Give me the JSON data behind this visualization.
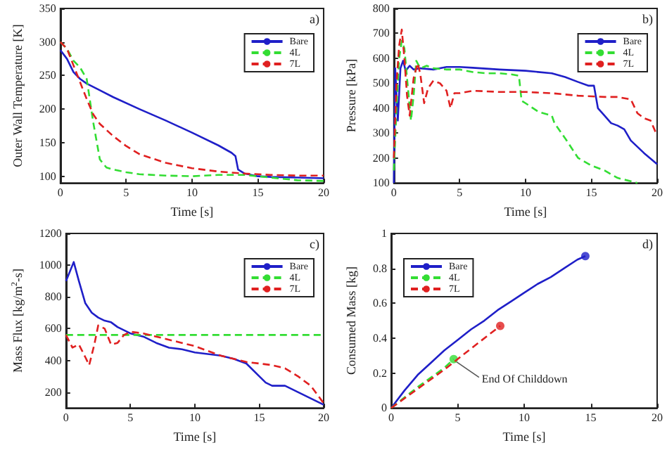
{
  "chart_data": [
    {
      "type": "line",
      "xlabel": "Time [s]",
      "ylabel": "Outer Wall Temperature [K]",
      "annotations": [
        "a)"
      ],
      "xlim": [
        0,
        20
      ],
      "xticks": [
        0,
        5,
        10,
        15,
        20
      ],
      "ylim": [
        90,
        350
      ],
      "yticks": [
        100,
        150,
        200,
        250,
        300,
        350
      ],
      "grid": false,
      "legend": "top right",
      "marker": "none",
      "series": [
        {
          "name": "Bare",
          "color": "#1f1fc8",
          "line_style": "solid",
          "x": [
            0,
            0.5,
            1,
            1.5,
            2,
            3,
            4,
            6,
            8,
            10,
            12,
            13,
            13.3,
            13.5,
            14,
            15,
            16,
            18,
            20
          ],
          "values": [
            288,
            275,
            255,
            245,
            238,
            228,
            218,
            200,
            183,
            165,
            146,
            135,
            130,
            110,
            104,
            100,
            99,
            98,
            97
          ]
        },
        {
          "name": "4L",
          "color": "#33dd33",
          "line_style": "dashed",
          "x": [
            0,
            0.5,
            1,
            1.5,
            2,
            2.5,
            3,
            3.5,
            4,
            5,
            6,
            8,
            10,
            12,
            14,
            16,
            18,
            20
          ],
          "values": [
            300,
            290,
            272,
            262,
            245,
            180,
            125,
            113,
            110,
            106,
            103,
            101,
            100,
            102,
            102,
            98,
            94,
            93
          ]
        },
        {
          "name": "7L",
          "color": "#e02020",
          "line_style": "dashed",
          "x": [
            0,
            0.5,
            1,
            1.5,
            2,
            2.5,
            3,
            4,
            5,
            6,
            8,
            10,
            12,
            14,
            16,
            18,
            20
          ],
          "values": [
            300,
            290,
            265,
            240,
            215,
            192,
            178,
            160,
            145,
            133,
            120,
            112,
            107,
            104,
            102,
            101,
            101
          ]
        }
      ]
    },
    {
      "type": "line",
      "xlabel": "Time [s]",
      "ylabel": "Pressure [kPa]",
      "annotations": [
        "b)"
      ],
      "xlim": [
        0,
        20
      ],
      "xticks": [
        0,
        5,
        10,
        15,
        20
      ],
      "ylim": [
        100,
        800
      ],
      "yticks": [
        100,
        200,
        300,
        400,
        500,
        600,
        700,
        800
      ],
      "grid": false,
      "legend": "top right",
      "marker": "none",
      "series": [
        {
          "name": "Bare",
          "color": "#1f1fc8",
          "line_style": "solid",
          "x": [
            0,
            0.1,
            0.3,
            0.5,
            0.7,
            0.9,
            1.2,
            1.5,
            2,
            3,
            4,
            5,
            6,
            8,
            10,
            12,
            13,
            14,
            14.8,
            15.2,
            15.5,
            16,
            16.5,
            17,
            17.5,
            18,
            19,
            20
          ],
          "values": [
            100,
            560,
            350,
            560,
            590,
            550,
            570,
            555,
            560,
            555,
            565,
            565,
            562,
            555,
            550,
            540,
            525,
            505,
            490,
            490,
            400,
            370,
            340,
            330,
            315,
            270,
            220,
            175
          ]
        },
        {
          "name": "4L",
          "color": "#33dd33",
          "line_style": "dashed",
          "x": [
            0,
            0.2,
            0.4,
            0.6,
            0.8,
            1,
            1.3,
            1.5,
            1.7,
            2,
            2.5,
            3,
            4,
            5,
            6,
            7,
            8,
            9,
            9.5,
            9.7,
            10,
            11,
            12,
            12.2,
            13,
            14,
            15,
            16,
            17,
            18.5
          ],
          "values": [
            150,
            400,
            600,
            670,
            640,
            520,
            350,
            450,
            590,
            560,
            570,
            560,
            555,
            555,
            545,
            540,
            540,
            535,
            530,
            430,
            420,
            385,
            370,
            340,
            280,
            200,
            170,
            150,
            120,
            100
          ]
        },
        {
          "name": "7L",
          "color": "#e02020",
          "line_style": "dashed",
          "x": [
            0,
            0.2,
            0.4,
            0.6,
            0.8,
            1,
            1.2,
            1.5,
            1.8,
            2,
            2.3,
            2.6,
            3,
            3.5,
            4,
            4.3,
            4.6,
            5,
            6,
            8,
            10,
            12,
            14,
            16,
            17,
            18,
            18.5,
            19,
            19.5,
            20
          ],
          "values": [
            200,
            500,
            650,
            715,
            600,
            450,
            370,
            520,
            580,
            540,
            420,
            480,
            510,
            500,
            470,
            400,
            460,
            460,
            470,
            465,
            465,
            460,
            450,
            445,
            445,
            435,
            380,
            360,
            350,
            290
          ]
        }
      ]
    },
    {
      "type": "line",
      "xlabel": "Time [s]",
      "ylabel": "Mass Flux [kg/m$^{2}$-s]",
      "annotations": [
        "c)"
      ],
      "xlim": [
        0,
        20
      ],
      "xticks": [
        0,
        5,
        10,
        15,
        20
      ],
      "ylim": [
        100,
        1200
      ],
      "yticks": [
        200,
        400,
        600,
        800,
        1000,
        1200
      ],
      "grid": false,
      "legend": "top right",
      "marker": "none",
      "series": [
        {
          "name": "Bare",
          "color": "#1f1fc8",
          "line_style": "solid",
          "x": [
            0,
            0.3,
            0.6,
            1,
            1.5,
            2,
            2.5,
            3,
            3.5,
            4,
            5,
            6,
            7,
            8,
            9,
            10,
            11,
            12,
            13,
            14,
            15,
            15.5,
            16,
            17,
            18,
            19,
            20
          ],
          "values": [
            900,
            960,
            1020,
            900,
            760,
            700,
            670,
            650,
            640,
            610,
            570,
            550,
            510,
            480,
            470,
            450,
            440,
            430,
            410,
            380,
            300,
            260,
            240,
            240,
            200,
            160,
            120
          ]
        },
        {
          "name": "4L",
          "color": "#33dd33",
          "line_style": "dashed",
          "x": [
            0,
            20
          ],
          "values": [
            560,
            560
          ]
        },
        {
          "name": "7L",
          "color": "#e02020",
          "line_style": "dashed",
          "x": [
            0,
            0.5,
            1,
            1.5,
            1.8,
            2.2,
            2.5,
            3,
            3.5,
            4,
            4.5,
            5,
            6,
            7,
            8,
            9,
            10,
            11,
            12,
            13,
            14,
            15,
            16,
            17,
            18,
            19,
            20
          ],
          "values": [
            560,
            480,
            500,
            420,
            370,
            500,
            620,
            600,
            500,
            510,
            560,
            580,
            570,
            550,
            530,
            510,
            490,
            460,
            430,
            410,
            390,
            380,
            370,
            350,
            300,
            240,
            130
          ]
        }
      ]
    },
    {
      "type": "line",
      "xlabel": "Time [s]",
      "ylabel": "Consumed Mass [kg]",
      "annotations": [
        "d)",
        {
          "text": "End Of Childdown",
          "x": 4.7,
          "y": 0.28
        }
      ],
      "xlim": [
        0,
        20
      ],
      "xticks": [
        0,
        5,
        10,
        15,
        20
      ],
      "ylim": [
        0,
        1
      ],
      "yticks": [
        0,
        0.2,
        0.4,
        0.6,
        0.8,
        1
      ],
      "grid": false,
      "legend": "top left",
      "marker": "none",
      "series": [
        {
          "name": "Bare",
          "color": "#1f1fc8",
          "line_style": "solid",
          "x": [
            0,
            1,
            2,
            3,
            4,
            5,
            6,
            7,
            8,
            9,
            10,
            11,
            12,
            13,
            14,
            14.6
          ],
          "values": [
            0,
            0.1,
            0.19,
            0.26,
            0.33,
            0.39,
            0.45,
            0.5,
            0.56,
            0.61,
            0.66,
            0.71,
            0.75,
            0.8,
            0.85,
            0.87
          ]
        },
        {
          "name": "4L",
          "color": "#33dd33",
          "line_style": "dashed",
          "x": [
            0,
            2,
            4,
            4.7
          ],
          "values": [
            0,
            0.12,
            0.23,
            0.28
          ]
        },
        {
          "name": "7L",
          "color": "#e02020",
          "line_style": "dashed",
          "x": [
            0,
            2,
            4,
            6,
            8.2
          ],
          "values": [
            0,
            0.11,
            0.22,
            0.34,
            0.47
          ]
        },
        {
          "type": "scatter",
          "color": "#1f1fc8",
          "marker": "circle",
          "x": [
            14.6
          ],
          "values": [
            0.87
          ]
        },
        {
          "type": "scatter",
          "color": "#33dd33",
          "marker": "circle",
          "x": [
            4.7
          ],
          "values": [
            0.28
          ]
        },
        {
          "type": "scatter",
          "color": "#e02020",
          "marker": "circle",
          "x": [
            8.2
          ],
          "values": [
            0.47
          ]
        }
      ]
    }
  ]
}
